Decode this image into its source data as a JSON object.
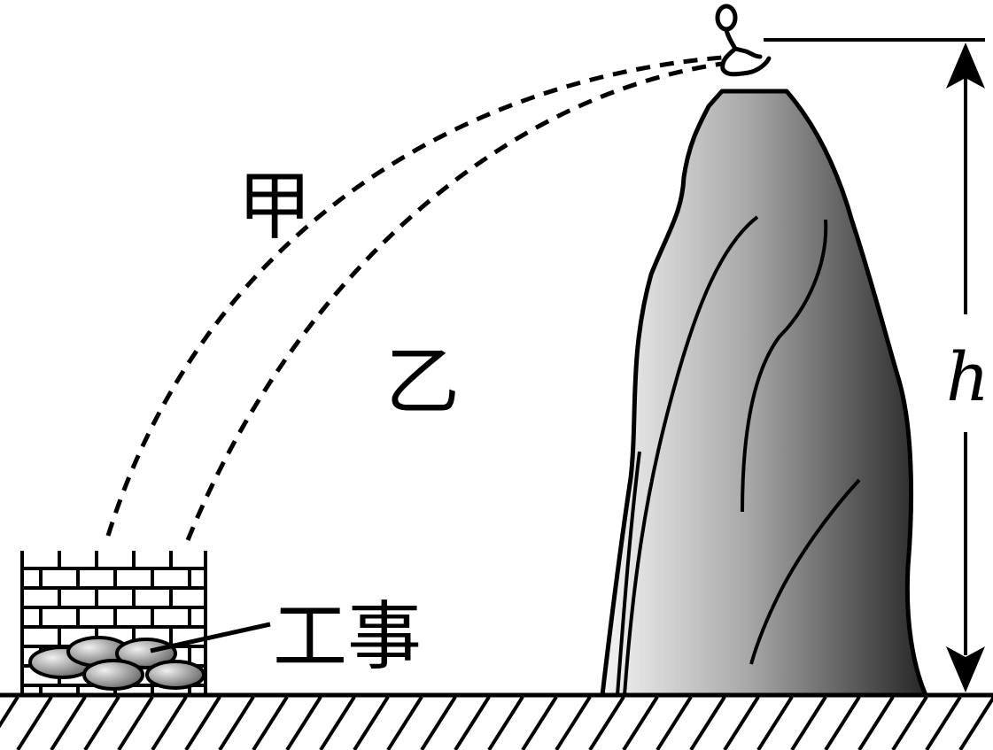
{
  "labels": {
    "trajectory_a": "甲",
    "trajectory_b": "乙",
    "bunker": "工事",
    "height": "h"
  },
  "colors": {
    "ink": "#000000",
    "rock_light": "#f2f2f2",
    "rock_dark": "#2a2a2a",
    "stone_light": "#e8e8e8",
    "stone_dark": "#5a5a5a",
    "background": "#ffffff"
  },
  "icons": {
    "person": "stick-figure-icon",
    "arrow_up": "arrowhead-up-icon",
    "arrow_down": "arrowhead-down-icon"
  }
}
